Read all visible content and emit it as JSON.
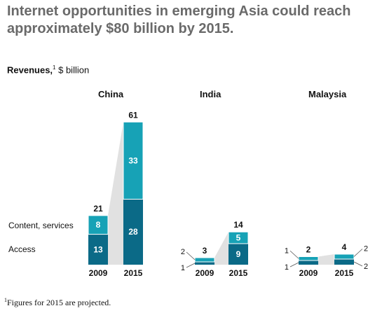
{
  "title": "Internet opportunities in emerging Asia could reach approximately $80 billion by 2015.",
  "subtitle": {
    "bold": "Revenues,",
    "sup": "1",
    "unit": " $ billion"
  },
  "footnote": {
    "sup": "1",
    "text": "Figures for 2015 are projected."
  },
  "legend": {
    "content": "Content, services",
    "access": "Access"
  },
  "colors": {
    "content": "#17a2b6",
    "access": "#0b6a87",
    "connector": "#dcdcdc"
  },
  "chart_data": {
    "type": "bar",
    "stacked": true,
    "series_names": [
      "Access",
      "Content, services"
    ],
    "panels": [
      {
        "name": "China",
        "categories": [
          "2009",
          "2015"
        ],
        "series": [
          {
            "name": "Access",
            "values": [
              13,
              28
            ]
          },
          {
            "name": "Content, services",
            "values": [
              8,
              33
            ]
          }
        ],
        "totals": [
          21,
          61
        ]
      },
      {
        "name": "India",
        "categories": [
          "2009",
          "2015"
        ],
        "series": [
          {
            "name": "Access",
            "values": [
              1,
              9
            ]
          },
          {
            "name": "Content, services",
            "values": [
              2,
              5
            ]
          }
        ],
        "totals": [
          3,
          14
        ]
      },
      {
        "name": "Malaysia",
        "categories": [
          "2009",
          "2015"
        ],
        "series": [
          {
            "name": "Access",
            "values": [
              1,
              2
            ]
          },
          {
            "name": "Content, services",
            "values": [
              1,
              2
            ]
          }
        ],
        "totals": [
          2,
          4
        ]
      }
    ]
  }
}
